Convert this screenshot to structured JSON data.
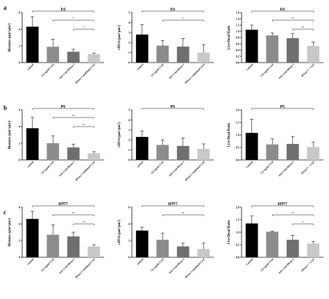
{
  "figure": {
    "rows": [
      {
        "label": "a",
        "panels": [
          0,
          1,
          2
        ]
      },
      {
        "label": "b",
        "panels": [
          3,
          4,
          5
        ]
      },
      {
        "label": "c",
        "panels": [
          6,
          7,
          8
        ]
      }
    ],
    "colors": [
      "#000000",
      "#8c8c8c",
      "#6f6f6f",
      "#c8c8c8"
    ]
  },
  "chart_data": [
    {
      "type": "bar",
      "title": "L1",
      "ylabel": "Biomass (μm³/μm²)",
      "categories": [
        "control",
        "512 ug/ml CAZ",
        "0.01 U/ml DNase I",
        "DNase I combined CAZ"
      ],
      "values": [
        4.3,
        1.9,
        1.3,
        1.0
      ],
      "errors": [
        1.2,
        0.9,
        0.3,
        0.15
      ],
      "ylim": [
        0,
        6
      ],
      "yticks": [
        0,
        2,
        4,
        6
      ],
      "brackets": [
        {
          "from": 0,
          "to": 3,
          "label": "**"
        },
        {
          "from": 1,
          "to": 3,
          "label": "*"
        },
        {
          "from": 2,
          "to": 3,
          "label": "*"
        }
      ]
    },
    {
      "type": "bar",
      "title": "L1",
      "ylabel": "cDNA (μm³/μm²)",
      "categories": [
        "control",
        "512 ug/ml CAZ",
        "0.01 U/ml DNase I",
        "DNase I combined CAZ"
      ],
      "values": [
        2.8,
        1.7,
        1.6,
        1.0
      ],
      "errors": [
        1.0,
        0.5,
        0.8,
        0.8
      ],
      "ylim": [
        0,
        5
      ],
      "yticks": [
        0,
        1,
        2,
        3,
        4,
        5
      ],
      "brackets": [
        {
          "from": 0,
          "to": 3,
          "label": "**"
        },
        {
          "from": 1,
          "to": 3,
          "label": "*"
        }
      ]
    },
    {
      "type": "bar",
      "title": "L1",
      "ylabel": "Live/Dead Ratio",
      "categories": [
        "Control",
        "512 ug/ml CAZ",
        "0.01 U/ml DNase I",
        "DNase I + CAZ"
      ],
      "values": [
        1.05,
        0.87,
        0.78,
        0.53
      ],
      "errors": [
        0.15,
        0.08,
        0.15,
        0.13
      ],
      "ylim": [
        0,
        1.6
      ],
      "yticks": [
        0.0,
        0.2,
        0.4,
        0.6,
        0.8,
        1.0,
        1.2,
        1.4,
        1.6
      ],
      "brackets": [
        {
          "from": 0,
          "to": 3,
          "label": "**"
        },
        {
          "from": 1,
          "to": 3,
          "label": "**"
        },
        {
          "from": 2,
          "to": 3,
          "label": "**"
        }
      ]
    },
    {
      "type": "bar",
      "title": "P1",
      "ylabel": "Biomass (μm³/μm²)",
      "categories": [
        "control",
        "512 ug/ml CAZ",
        "0.01 U/ml DNase I",
        "DNase I combined CAZ"
      ],
      "values": [
        3.8,
        2.0,
        1.5,
        0.8
      ],
      "errors": [
        1.3,
        0.9,
        0.4,
        0.2
      ],
      "ylim": [
        0,
        6
      ],
      "yticks": [
        0,
        2,
        4,
        6
      ],
      "brackets": [
        {
          "from": 0,
          "to": 3,
          "label": "**"
        },
        {
          "from": 1,
          "to": 3,
          "label": "**"
        },
        {
          "from": 2,
          "to": 3,
          "label": "**"
        }
      ]
    },
    {
      "type": "bar",
      "title": "P1",
      "ylabel": "cDNA (μm³/μm²)",
      "categories": [
        "control",
        "512 ug/ml CAZ",
        "0.01 U/ml DNase I",
        "DNase I combined CAZ"
      ],
      "values": [
        2.3,
        1.5,
        1.4,
        1.1
      ],
      "errors": [
        0.6,
        0.5,
        0.8,
        0.5
      ],
      "ylim": [
        0,
        5
      ],
      "yticks": [
        0,
        1,
        2,
        3,
        4,
        5
      ],
      "brackets": [
        {
          "from": 0,
          "to": 3,
          "label": "**"
        }
      ]
    },
    {
      "type": "bar",
      "title": "P1",
      "ylabel": "Live/Dead Ratio",
      "categories": [
        "Control",
        "512 ug/ml CAZ",
        "0.01 U/ml DNase I",
        "DNase I + CAZ"
      ],
      "values": [
        1.08,
        0.62,
        0.64,
        0.52
      ],
      "errors": [
        0.55,
        0.22,
        0.3,
        0.2
      ],
      "ylim": [
        0,
        2.0
      ],
      "yticks": [
        0.0,
        0.5,
        1.0,
        1.5,
        2.0
      ],
      "brackets": [
        {
          "from": 0,
          "to": 3,
          "label": "*"
        }
      ]
    },
    {
      "type": "bar",
      "title": "H777",
      "ylabel": "Biomass (μm³/μm²)",
      "categories": [
        "control",
        "512 ug/ml CAZ",
        "0.01 U/ml DNase I",
        "DNase I combined CAZ"
      ],
      "values": [
        4.6,
        2.7,
        2.5,
        1.3
      ],
      "errors": [
        0.9,
        1.2,
        0.5,
        0.2
      ],
      "ylim": [
        0,
        6
      ],
      "yticks": [
        0,
        2,
        4,
        6
      ],
      "brackets": [
        {
          "from": 0,
          "to": 3,
          "label": "**"
        },
        {
          "from": 1,
          "to": 3,
          "label": "**"
        },
        {
          "from": 2,
          "to": 3,
          "label": "**"
        }
      ]
    },
    {
      "type": "bar",
      "title": "H777",
      "ylabel": "cDNA (μm³/μm²)",
      "categories": [
        "control",
        "512 ug/ml CAZ",
        "0.01 U/ml DNase I",
        "DNase I combined CAZ"
      ],
      "values": [
        3.2,
        2.1,
        1.3,
        1.0
      ],
      "errors": [
        0.4,
        0.8,
        0.4,
        0.7
      ],
      "ylim": [
        0,
        6
      ],
      "yticks": [
        0,
        2,
        4,
        6
      ],
      "brackets": [
        {
          "from": 0,
          "to": 3,
          "label": "**"
        },
        {
          "from": 1,
          "to": 3,
          "label": "**"
        }
      ]
    },
    {
      "type": "bar",
      "title": "H777",
      "ylabel": "Live/Dead Ratio",
      "categories": [
        "Control",
        "512 ug/ml CAZ",
        "0.01 U/ml DNase I",
        "DNase I + CAZ"
      ],
      "values": [
        1.35,
        1.02,
        0.7,
        0.55
      ],
      "errors": [
        0.3,
        0.03,
        0.18,
        0.08
      ],
      "ylim": [
        0,
        2.0
      ],
      "yticks": [
        0.0,
        0.5,
        1.0,
        1.5,
        2.0
      ],
      "brackets": [
        {
          "from": 0,
          "to": 3,
          "label": "**"
        },
        {
          "from": 1,
          "to": 3,
          "label": "**"
        },
        {
          "from": 2,
          "to": 3,
          "label": "*"
        }
      ]
    }
  ]
}
